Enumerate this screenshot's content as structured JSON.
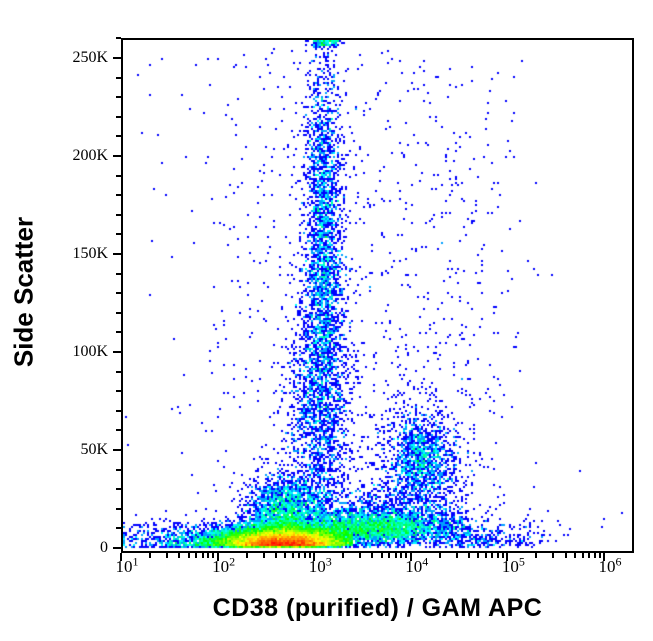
{
  "chart_data": {
    "type": "scatter",
    "flavor": "flow_cytometry_density_dot_plot",
    "title": "",
    "xlabel": "CD38 (purified) / GAM APC",
    "ylabel": "Side Scatter",
    "grid": false,
    "legend": "none",
    "x_axis": {
      "scale": "log10",
      "range_exponents": [
        1,
        6.29
      ],
      "tick_label_base": "10",
      "major_tick_exponents": [
        1,
        2,
        3,
        4,
        5,
        6
      ],
      "major_tick_labels": [
        "10^1",
        "10^2",
        "10^3",
        "10^4",
        "10^5",
        "10^6"
      ],
      "minor_tick_multiples": [
        2,
        3,
        4,
        5,
        6,
        7,
        8,
        9
      ]
    },
    "y_axis": {
      "scale": "linear",
      "range": [
        0,
        260000
      ],
      "major_ticks": [
        {
          "value_k": 0,
          "label": "0"
        },
        {
          "value_k": 50,
          "label": "50K"
        },
        {
          "value_k": 100,
          "label": "100K"
        },
        {
          "value_k": 150,
          "label": "150K"
        },
        {
          "value_k": 200,
          "label": "200K"
        },
        {
          "value_k": 250,
          "label": "250K"
        }
      ],
      "minor_tick_step_k": 10,
      "minor_tick_max_k": 260
    },
    "density_colormap": {
      "name": "jet-rainbow",
      "stops": [
        "#0000ff",
        "#00ffff",
        "#00ff00",
        "#ffff00",
        "#ff0000"
      ],
      "scaling": "log"
    },
    "axis_color": "#000000",
    "background_color": "#ffffff",
    "dot_size_px": 2,
    "populations": [
      {
        "name": "main-core-low-ssc",
        "count": 15000,
        "lx": {
          "dist": "normal",
          "mean": 2.7,
          "sd": 0.32,
          "clip": [
            1.0,
            3.4
          ]
        },
        "y": {
          "dist": "halfnormal",
          "offset": 0.8,
          "sd": 4.5,
          "clip": [
            0,
            30
          ]
        }
      },
      {
        "name": "main-shoulder",
        "count": 2600,
        "lx": {
          "dist": "normal",
          "mean": 2.72,
          "sd": 0.2,
          "clip": [
            1.3,
            3.35
          ]
        },
        "y": {
          "dist": "normal",
          "mean": 16,
          "sd": 10,
          "clip": [
            0,
            55
          ]
        }
      },
      {
        "name": "left-tail",
        "count": 1100,
        "lx": {
          "dist": "normal",
          "mean": 2.15,
          "sd": 0.38,
          "clip": [
            1.0,
            2.65
          ]
        },
        "y": {
          "dist": "halfnormal",
          "offset": 0.5,
          "sd": 4.5,
          "clip": [
            0,
            25
          ]
        }
      },
      {
        "name": "right-band",
        "count": 3000,
        "lx": {
          "dist": "normal",
          "mean": 3.6,
          "sd": 0.45,
          "clip": [
            3.0,
            4.62
          ]
        },
        "y": {
          "dist": "normal",
          "mean": 10,
          "sd": 4.5,
          "clip": [
            0.5,
            26
          ]
        }
      },
      {
        "name": "band-blue-fringe",
        "count": 900,
        "lx": {
          "dist": "normal",
          "mean": 3.72,
          "sd": 0.45,
          "clip": [
            3.0,
            4.6
          ]
        },
        "y": {
          "dist": "normal",
          "mean": 17,
          "sd": 8,
          "clip": [
            0,
            45
          ]
        }
      },
      {
        "name": "plume-upper",
        "count": 2400,
        "lx": {
          "dist": "normal",
          "mean": 3.1,
          "sd": 0.1,
          "clip": [
            2.65,
            3.55
          ]
        },
        "y": {
          "dist": "normal",
          "mean": 160,
          "sd": 48,
          "clip": [
            35,
            259.5
          ]
        }
      },
      {
        "name": "plume-lower",
        "count": 1500,
        "lx": {
          "dist": "normal",
          "mean": 3.05,
          "sd": 0.17,
          "clip": [
            2.55,
            3.65
          ]
        },
        "y": {
          "dist": "normal",
          "mean": 70,
          "sd": 38,
          "clip": [
            22,
            150
          ]
        }
      },
      {
        "name": "plume-top-peg",
        "count": 140,
        "lx": {
          "dist": "normal",
          "mean": 3.12,
          "sd": 0.08,
          "clip": [
            2.85,
            3.45
          ]
        },
        "y": {
          "dist": "uniform",
          "min": 256,
          "max": 259.5
        }
      },
      {
        "name": "cd38-bright-cluster",
        "count": 1050,
        "lx": {
          "dist": "normal",
          "mean": 4.12,
          "sd": 0.16,
          "clip": [
            3.6,
            4.75
          ]
        },
        "y": {
          "dist": "normal",
          "mean": 45,
          "sd": 11,
          "clip": [
            20,
            95
          ]
        }
      },
      {
        "name": "cluster-halo",
        "count": 420,
        "lx": {
          "dist": "normal",
          "mean": 4.08,
          "sd": 0.3,
          "clip": [
            3.4,
            4.95
          ]
        },
        "y": {
          "dist": "normal",
          "mean": 42,
          "sd": 22,
          "clip": [
            15,
            130
          ]
        }
      },
      {
        "name": "bg-bottom-left",
        "count": 420,
        "lx": {
          "dist": "uniform",
          "min": 1.0,
          "max": 2.35
        },
        "y": {
          "dist": "halfnormal",
          "offset": 0.3,
          "sd": 6,
          "clip": [
            0,
            40
          ]
        }
      },
      {
        "name": "bg-bottom-right",
        "count": 330,
        "lx": {
          "dist": "normal",
          "mean": 4.7,
          "sd": 0.4,
          "clip": [
            4.35,
            6.25
          ]
        },
        "y": {
          "dist": "halfnormal",
          "offset": 0.5,
          "sd": 8,
          "clip": [
            0,
            40
          ]
        }
      },
      {
        "name": "bg-wide",
        "count": 650,
        "lx": {
          "dist": "normal",
          "mean": 3.15,
          "sd": 0.8,
          "clip": [
            1.0,
            6.25
          ]
        },
        "y": {
          "dist": "uniform",
          "min": 0,
          "max": 255
        }
      },
      {
        "name": "bg-right-mid",
        "count": 230,
        "lx": {
          "dist": "normal",
          "mean": 4.5,
          "sd": 0.35,
          "clip": [
            3.65,
            5.6
          ]
        },
        "y": {
          "dist": "normal",
          "mean": 140,
          "sd": 65,
          "clip": [
            30,
            250
          ]
        }
      }
    ]
  }
}
